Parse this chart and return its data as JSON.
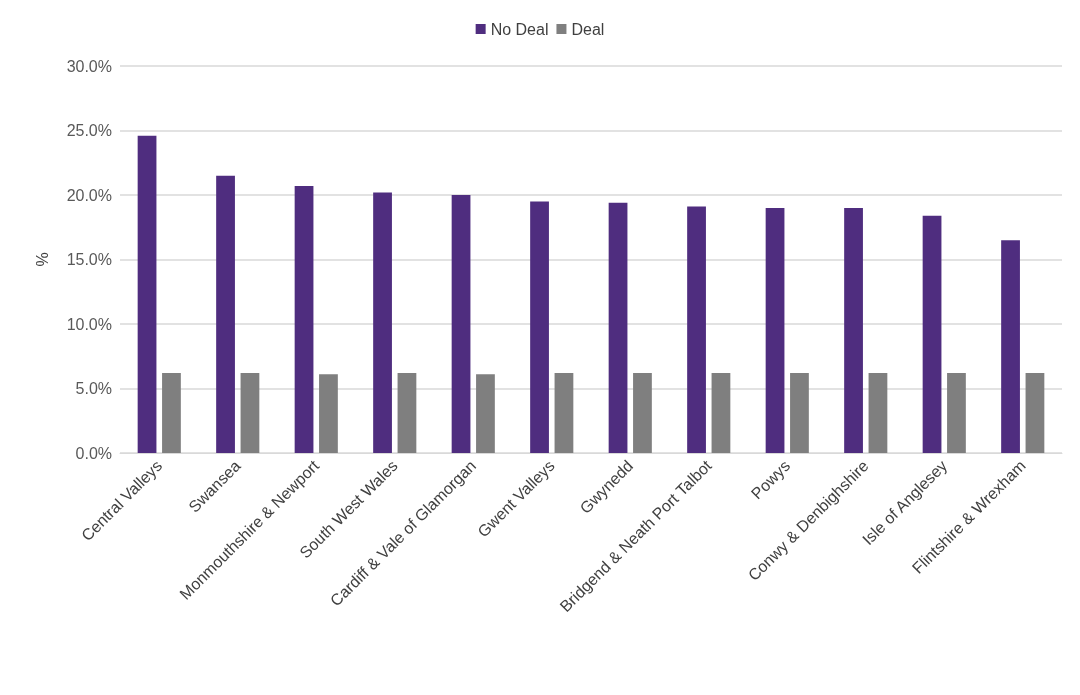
{
  "chart_data": {
    "type": "bar",
    "ylabel": "%",
    "categories": [
      "Central Valleys",
      "Swansea",
      "Monmouthshire & Newport",
      "South West Wales",
      "Cardiff & Vale of Glamorgan",
      "Gwent Valleys",
      "Gwynedd",
      "Bridgend & Neath Port Talbot",
      "Powys",
      "Conwy & Denbighshire",
      "Isle of Anglesey",
      "Flintshire & Wrexham"
    ],
    "series": [
      {
        "name": "No Deal",
        "color": "#4f2d7f",
        "values": [
          24.6,
          21.5,
          20.7,
          20.2,
          20.0,
          19.5,
          19.4,
          19.1,
          19.0,
          19.0,
          18.4,
          16.5
        ]
      },
      {
        "name": "Deal",
        "color": "#7f7f7f",
        "values": [
          6.2,
          6.2,
          6.1,
          6.2,
          6.1,
          6.2,
          6.2,
          6.2,
          6.2,
          6.2,
          6.2,
          6.2
        ]
      }
    ],
    "ylim": [
      0,
      30
    ],
    "yticks": [
      {
        "value": 0,
        "label": "0.0%"
      },
      {
        "value": 5,
        "label": "5.0%"
      },
      {
        "value": 10,
        "label": "10.0%"
      },
      {
        "value": 15,
        "label": "15.0%"
      },
      {
        "value": 20,
        "label": "20.0%"
      },
      {
        "value": 25,
        "label": "25.0%"
      },
      {
        "value": 30,
        "label": "30.0%"
      }
    ],
    "grid": "y",
    "legend": "top"
  }
}
